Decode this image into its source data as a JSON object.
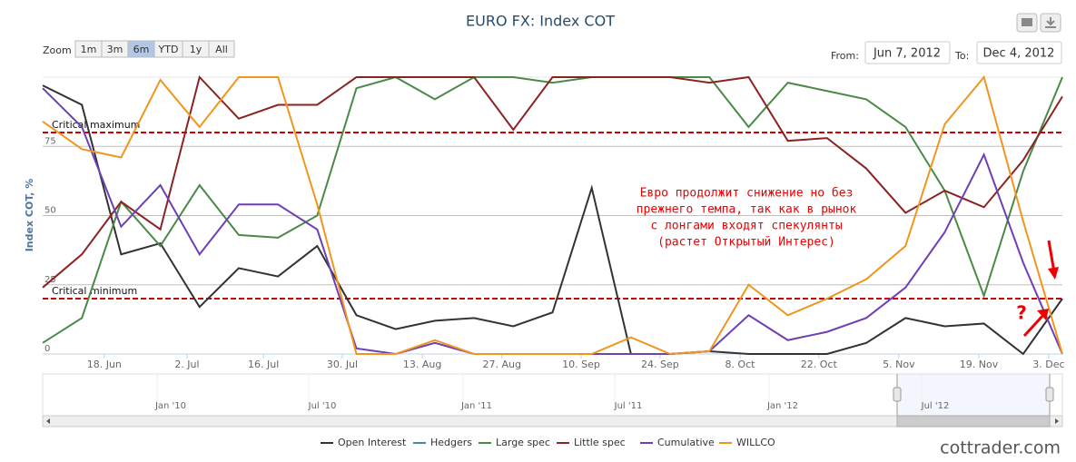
{
  "chart_data": {
    "type": "line",
    "title": "EURO FX: Index COT",
    "y_label": "Index COT, %",
    "zoom": {
      "label": "Zoom",
      "buttons": [
        "1m",
        "3m",
        "6m",
        "YTD",
        "1y",
        "All"
      ],
      "selected": 2
    },
    "range": {
      "from_label": "From:",
      "from": "Jun 7, 2012",
      "to_label": "To:",
      "to": "Dec 4, 2012"
    },
    "categories": [
      null,
      null,
      null,
      null,
      null,
      null,
      null,
      null,
      null,
      null,
      null,
      null,
      null,
      null,
      null,
      null,
      null,
      null,
      null,
      null,
      null,
      null,
      null,
      null,
      null,
      null,
      null
    ],
    "xlim": [
      0,
      26
    ],
    "xticks": [
      {
        "value": 1.57,
        "label": "18. Jun"
      },
      {
        "value": 3.68,
        "label": "2. Jul"
      },
      {
        "value": 5.63,
        "label": "16. Jul"
      },
      {
        "value": 7.64,
        "label": "30. Jul"
      },
      {
        "value": 9.68,
        "label": "13. Aug"
      },
      {
        "value": 11.71,
        "label": "27. Aug"
      },
      {
        "value": 13.73,
        "label": "10. Sep"
      },
      {
        "value": 15.74,
        "label": "24. Sep"
      },
      {
        "value": 17.78,
        "label": "8. Oct"
      },
      {
        "value": 19.79,
        "label": "22. Oct"
      },
      {
        "value": 21.83,
        "label": "5. Nov"
      },
      {
        "value": 23.87,
        "label": "19. Nov"
      },
      {
        "value": 25.65,
        "label": "3. Dec"
      }
    ],
    "ylim": [
      0,
      100
    ],
    "yticks": [
      0,
      25,
      50,
      75
    ],
    "grid": true,
    "plot_lines": [
      {
        "value": 80,
        "label": "Critical maximum",
        "color": "#cc0000"
      },
      {
        "value": 20,
        "label": "Critical minimum",
        "color": "#cc0000"
      }
    ],
    "series": [
      {
        "name": "Open Interest",
        "color": "#333333",
        "values": [
          97,
          90,
          36,
          40,
          17,
          31,
          28,
          39,
          14,
          9,
          12,
          13,
          10,
          15,
          60,
          0,
          0,
          1,
          0,
          0,
          0,
          4,
          13,
          10,
          11,
          0,
          20
        ]
      },
      {
        "name": "Hedgers",
        "color": "#3d8da8",
        "values": [
          null,
          null,
          null,
          null,
          null,
          null,
          null,
          null,
          null,
          null,
          null,
          null,
          null,
          null,
          null,
          null,
          null,
          null,
          null,
          null,
          null,
          null,
          null,
          null,
          null,
          null,
          null
        ]
      },
      {
        "name": "Large spec",
        "color": "#4a8a46",
        "values": [
          4,
          13,
          55,
          39,
          61,
          43,
          42,
          50,
          96,
          100,
          92,
          100,
          100,
          98,
          100,
          100,
          100,
          100,
          82,
          98,
          95,
          92,
          82,
          59,
          21,
          66,
          100
        ]
      },
      {
        "name": "Little spec",
        "color": "#8b2323",
        "values": [
          24,
          36,
          55,
          45,
          100,
          85,
          90,
          90,
          100,
          100,
          100,
          100,
          81,
          100,
          100,
          100,
          100,
          98,
          100,
          77,
          78,
          67,
          51,
          59,
          53,
          70,
          93
        ]
      },
      {
        "name": "Cumulative",
        "color": "#6f3fb5",
        "values": [
          96,
          82,
          46,
          61,
          36,
          54,
          54,
          45,
          2,
          0,
          4,
          0,
          0,
          0,
          0,
          0,
          0,
          1,
          14,
          5,
          8,
          13,
          24,
          44,
          72,
          33,
          0
        ]
      },
      {
        "name": "WILLCO",
        "color": "#f0961e",
        "values": [
          84,
          74,
          71,
          99,
          82,
          100,
          100,
          54,
          0,
          0,
          5,
          0,
          0,
          0,
          0,
          6,
          0,
          1,
          25,
          14,
          20,
          27,
          39,
          83,
          100,
          48,
          0
        ]
      }
    ],
    "annotations": [
      "Евро продолжит снижение но без",
      "прежнего темпа, так как  в рынок",
      "с лонгами входят спекулянты",
      "(растет Открытый Интерес)"
    ],
    "question_mark": "?",
    "navigator_labels": [
      "Jan '10",
      "Jul '10",
      "Jan '11",
      "Jul '11",
      "Jan '12",
      "Jul '12"
    ],
    "watermark": "cottrader.com"
  }
}
